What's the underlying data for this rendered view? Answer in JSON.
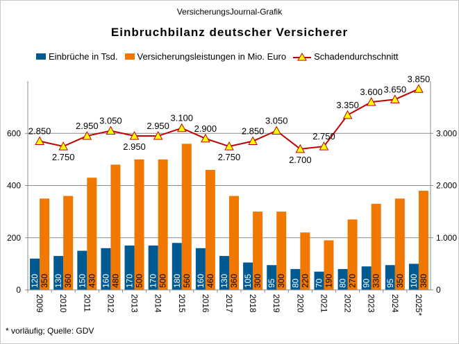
{
  "header": {
    "source": "VersicherungsJournal-Grafik",
    "title": "Einbruchbilanz deutscher Versicherer"
  },
  "footer": "* vorläufig;  Quelle: GDV",
  "colors": {
    "blue": "#005a92",
    "orange": "#f07800",
    "line": "#c00000",
    "marker": "#ffff00",
    "grid": "#888888"
  },
  "chart_data": {
    "type": "bar+line",
    "categories": [
      "2009",
      "2010",
      "2011",
      "2012",
      "2013",
      "2014",
      "2015",
      "2016",
      "2017",
      "2018",
      "2019",
      "2020",
      "2021",
      "2022",
      "2023",
      "2024",
      "2025*"
    ],
    "series": [
      {
        "name": "Einbrüche in Tsd.",
        "type": "bar",
        "axis": "left",
        "values": [
          120,
          130,
          150,
          160,
          170,
          170,
          180,
          160,
          130,
          105,
          95,
          80,
          70,
          80,
          90,
          95,
          100
        ]
      },
      {
        "name": "Versicherungsleistungen in Mio. Euro",
        "type": "bar",
        "axis": "left",
        "values": [
          350,
          360,
          430,
          480,
          500,
          500,
          560,
          460,
          360,
          300,
          300,
          220,
          190,
          270,
          330,
          350,
          380
        ]
      },
      {
        "name": "Schadendurchschnitt",
        "type": "line",
        "axis": "right",
        "values": [
          2850,
          2750,
          2950,
          3050,
          2950,
          2950,
          3100,
          2900,
          2750,
          2850,
          3050,
          2700,
          2750,
          3350,
          3600,
          3650,
          3850
        ]
      }
    ],
    "left_axis": {
      "ylim": [
        0,
        800
      ],
      "ticks": [
        0,
        200,
        400,
        600
      ],
      "tick_labels": [
        "0",
        "200",
        "400",
        "600"
      ]
    },
    "right_axis": {
      "ylim": [
        0,
        4000
      ],
      "ticks": [
        0,
        1000,
        2000,
        3000
      ],
      "tick_labels": [
        "0",
        "1.000",
        "2.000",
        "3.000"
      ]
    },
    "grid": true,
    "legend": "top"
  }
}
